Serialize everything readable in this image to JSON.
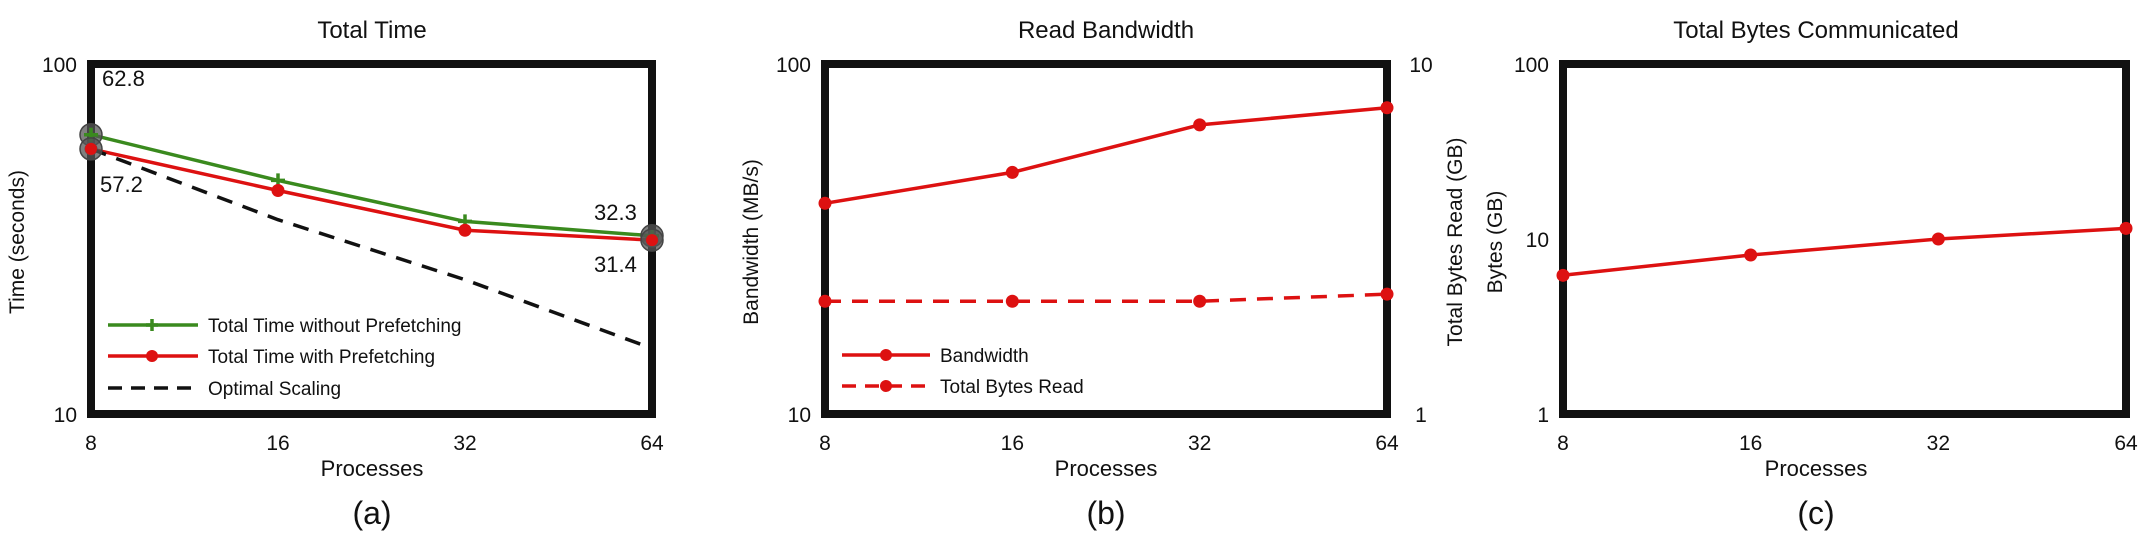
{
  "colors": {
    "green": "#3a8a1e",
    "red": "#dd1111",
    "black": "#111111"
  },
  "chart_data": [
    {
      "type": "line",
      "title": "Total Time",
      "xlabel": "Processes",
      "ylabel": "Time (seconds)",
      "scale": "log-log",
      "categories": [
        "8",
        "16",
        "32",
        "64"
      ],
      "x": [
        8,
        16,
        32,
        64
      ],
      "ylim": [
        10,
        100
      ],
      "yticks": [
        "10",
        "100"
      ],
      "series": [
        {
          "name": "Total Time without Prefetching",
          "values": [
            62.8,
            46.5,
            35.5,
            32.3
          ],
          "color": "#3a8a1e",
          "marker": "plus",
          "dash": "solid"
        },
        {
          "name": "Total Time with Prefetching",
          "values": [
            57.2,
            43.5,
            33.5,
            31.4
          ],
          "color": "#dd1111",
          "marker": "circle",
          "dash": "solid"
        },
        {
          "name": "Optimal Scaling",
          "values": [
            57.2,
            35.9,
            24.2,
            15.4
          ],
          "color": "#111111",
          "marker": "none",
          "dash": "dashed"
        }
      ],
      "annotations": [
        "62.8",
        "57.2",
        "32.3",
        "31.4"
      ],
      "legend": "bottom-left",
      "caption": "(a)"
    },
    {
      "type": "line",
      "title": "Read Bandwidth",
      "xlabel": "Processes",
      "ylabel": "Bandwidth (MB/s)",
      "y2label": "Total Bytes  Read (GB)",
      "scale": "log-log",
      "categories": [
        "8",
        "16",
        "32",
        "64"
      ],
      "x": [
        8,
        16,
        32,
        64
      ],
      "ylim": [
        10,
        100
      ],
      "yticks": [
        "10",
        "100"
      ],
      "y2lim": [
        1,
        10
      ],
      "y2ticks": [
        "1",
        "10"
      ],
      "series": [
        {
          "name": "Bandwidth",
          "values": [
            40,
            49,
            67,
            75
          ],
          "axis": "left",
          "color": "#dd1111",
          "marker": "circle",
          "dash": "solid"
        },
        {
          "name": "Total Bytes Read",
          "values": [
            2.1,
            2.1,
            2.1,
            2.2
          ],
          "axis": "right",
          "color": "#dd1111",
          "marker": "circle",
          "dash": "dashed"
        }
      ],
      "legend": "bottom-left",
      "caption": "(b)"
    },
    {
      "type": "line",
      "title": "Total Bytes Communicated",
      "xlabel": "Processes",
      "ylabel": "Bytes (GB)",
      "scale": "log-log",
      "categories": [
        "8",
        "16",
        "32",
        "64"
      ],
      "x": [
        8,
        16,
        32,
        64
      ],
      "ylim": [
        1,
        100
      ],
      "yticks": [
        "1",
        "10",
        "100"
      ],
      "series": [
        {
          "values": [
            6.2,
            8.1,
            10.0,
            11.5
          ],
          "color": "#dd1111",
          "marker": "circle",
          "dash": "solid"
        }
      ],
      "caption": "(c)"
    }
  ]
}
